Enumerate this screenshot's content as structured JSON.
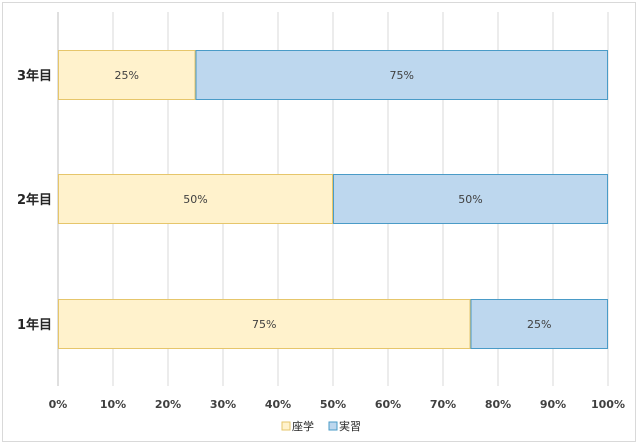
{
  "chart_data": {
    "type": "bar",
    "orientation": "horizontal",
    "stacked": true,
    "categories": [
      "3年目",
      "2年目",
      "1年目"
    ],
    "series": [
      {
        "name": "座学",
        "values": [
          25,
          50,
          75
        ],
        "labels": [
          "25%",
          "50%",
          "75%"
        ],
        "color": "#fff2cc",
        "border": "#e6c66b"
      },
      {
        "name": "実習",
        "values": [
          75,
          50,
          25
        ],
        "labels": [
          "75%",
          "50%",
          "25%"
        ],
        "color": "#bdd7ee",
        "border": "#4a9bc7"
      }
    ],
    "xlim": [
      0,
      100
    ],
    "xticks": [
      "0%",
      "10%",
      "20%",
      "30%",
      "40%",
      "50%",
      "60%",
      "70%",
      "80%",
      "90%",
      "100%"
    ],
    "grid": true,
    "legend_position": "bottom"
  }
}
